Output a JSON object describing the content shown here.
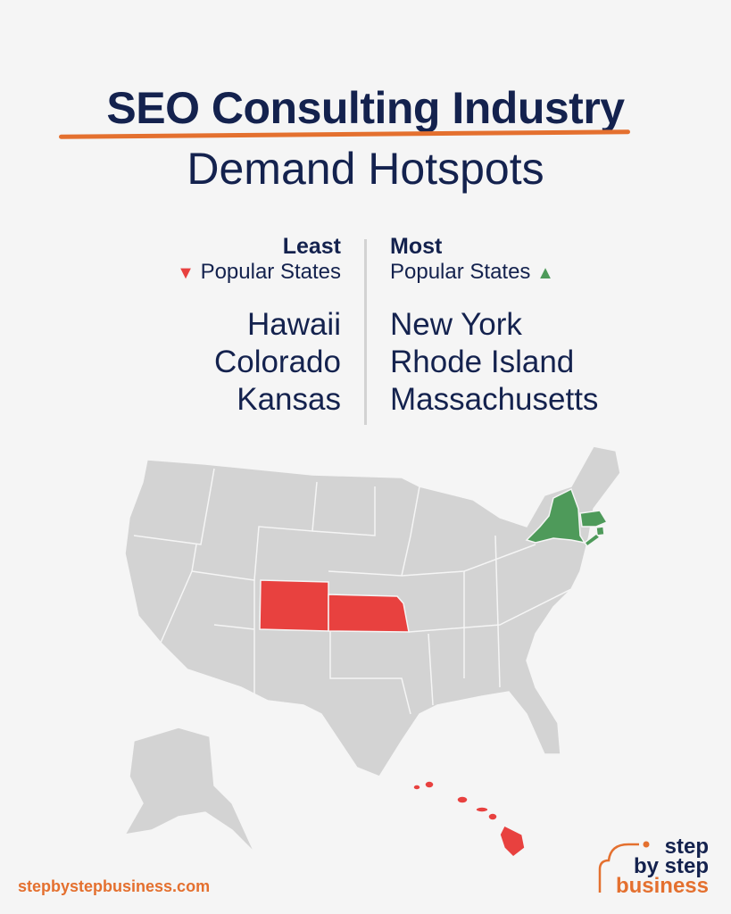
{
  "title": {
    "line1": "SEO Consulting Industry",
    "line2": "Demand Hotspots"
  },
  "least": {
    "header": "Least",
    "subheader": "Popular States",
    "icon": "triangle-down-icon",
    "color": "#e8413f",
    "states": [
      "Hawaii",
      "Colorado",
      "Kansas"
    ]
  },
  "most": {
    "header": "Most",
    "subheader": "Popular States",
    "icon": "triangle-up-icon",
    "color": "#4e9a5a",
    "states": [
      "New York",
      "Rhode Island",
      "Massachusetts"
    ]
  },
  "map": {
    "base_color": "#d3d3d3",
    "highlighted_least": [
      "Hawaii",
      "Colorado",
      "Kansas"
    ],
    "highlighted_most": [
      "New York",
      "Rhode Island",
      "Massachusetts"
    ]
  },
  "footer": {
    "url": "stepbystepbusiness.com"
  },
  "logo": {
    "line1": "step",
    "line2": "by step",
    "line3": "business",
    "accent": "#e4702f"
  }
}
